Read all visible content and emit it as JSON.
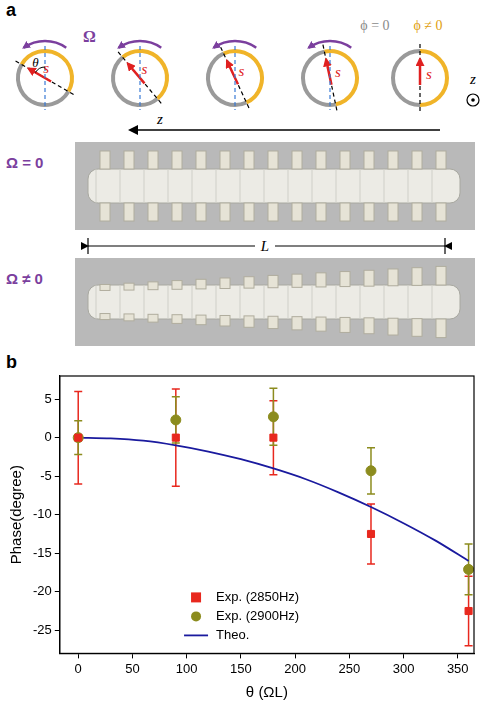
{
  "panel_labels": [
    "a",
    "b"
  ],
  "diagram": {
    "rotation_label": "Ω",
    "angle_label": "θ",
    "vector_label": "s",
    "phase_zero_label": "ϕ = 0",
    "phase_nonzero_label": "ϕ ≠ 0",
    "axis_label": "z",
    "length_label": "L",
    "photo_labels": [
      "Ω = 0",
      "Ω ≠ 0"
    ]
  },
  "chart_data": {
    "type": "scatter",
    "x_label": "θ (ΩL)",
    "y_label": "Phase(degree)",
    "xlim": [
      -17,
      365
    ],
    "xticks": [
      0,
      50,
      100,
      150,
      200,
      250,
      300,
      350
    ],
    "ylim": [
      -28,
      8
    ],
    "yticks": [
      -25,
      -20,
      -15,
      -10,
      -5,
      0,
      5
    ],
    "grid": false,
    "legend": "lower center",
    "series": [
      {
        "name": "Exp. (2850Hz)",
        "color": "#e8281e",
        "marker": "square",
        "x": [
          0,
          90,
          180,
          270,
          360
        ],
        "values": [
          0,
          0,
          0,
          -12.5,
          -22.5
        ],
        "errors": [
          6,
          6.3,
          4.8,
          3.9,
          4.5
        ]
      },
      {
        "name": "Exp. (2900Hz)",
        "color": "#8c8c1e",
        "marker": "circle",
        "x": [
          0,
          90,
          180,
          270,
          360
        ],
        "values": [
          0,
          2.3,
          2.7,
          -4.3,
          -17.1
        ],
        "errors": [
          2.2,
          3,
          3.7,
          3,
          3.3
        ]
      },
      {
        "name": "Theo.",
        "color": "#1a1a9e",
        "type": "line",
        "marker": "none",
        "line_style": "solid",
        "x": [
          0,
          30,
          60,
          90,
          120,
          150,
          180,
          210,
          240,
          270,
          300,
          330,
          360
        ],
        "values": [
          0,
          -0.1,
          -0.4,
          -1,
          -1.8,
          -2.8,
          -4,
          -5.4,
          -7.1,
          -9,
          -11.1,
          -13.4,
          -16
        ]
      }
    ]
  }
}
